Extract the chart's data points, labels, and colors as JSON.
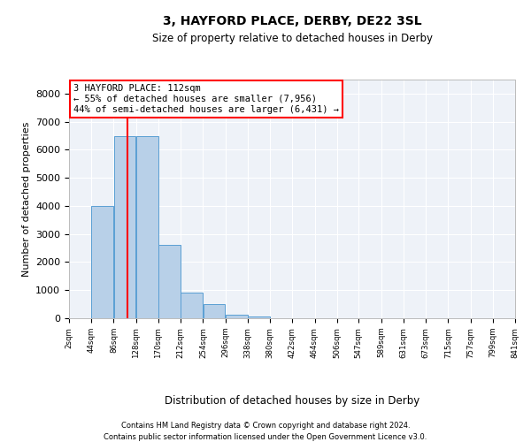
{
  "title1": "3, HAYFORD PLACE, DERBY, DE22 3SL",
  "title2": "Size of property relative to detached houses in Derby",
  "xlabel": "Distribution of detached houses by size in Derby",
  "ylabel": "Number of detached properties",
  "bar_heights": [
    0,
    4000,
    6500,
    6500,
    2600,
    900,
    500,
    125,
    70,
    0,
    0,
    0,
    0,
    0,
    0,
    0,
    0,
    0,
    0,
    0
  ],
  "tick_values": [
    2,
    44,
    86,
    128,
    170,
    212,
    254,
    296,
    338,
    380,
    422,
    464,
    506,
    547,
    589,
    631,
    673,
    715,
    757,
    799,
    841
  ],
  "tick_labels": [
    "2sqm",
    "44sqm",
    "86sqm",
    "128sqm",
    "170sqm",
    "212sqm",
    "254sqm",
    "296sqm",
    "338sqm",
    "380sqm",
    "422sqm",
    "464sqm",
    "506sqm",
    "547sqm",
    "589sqm",
    "631sqm",
    "673sqm",
    "715sqm",
    "757sqm",
    "799sqm",
    "841sqm"
  ],
  "vline_x": 112,
  "bar_color": "#b8d0e8",
  "bar_edge_color": "#5a9fd4",
  "vline_color": "red",
  "annotation_text": "3 HAYFORD PLACE: 112sqm\n← 55% of detached houses are smaller (7,956)\n44% of semi-detached houses are larger (6,431) →",
  "annotation_box_color": "white",
  "annotation_box_edge": "red",
  "ylim": [
    0,
    8500
  ],
  "yticks": [
    0,
    1000,
    2000,
    3000,
    4000,
    5000,
    6000,
    7000,
    8000
  ],
  "background_color": "#eef2f8",
  "grid_color": "white",
  "footer1": "Contains HM Land Registry data © Crown copyright and database right 2024.",
  "footer2": "Contains public sector information licensed under the Open Government Licence v3.0."
}
